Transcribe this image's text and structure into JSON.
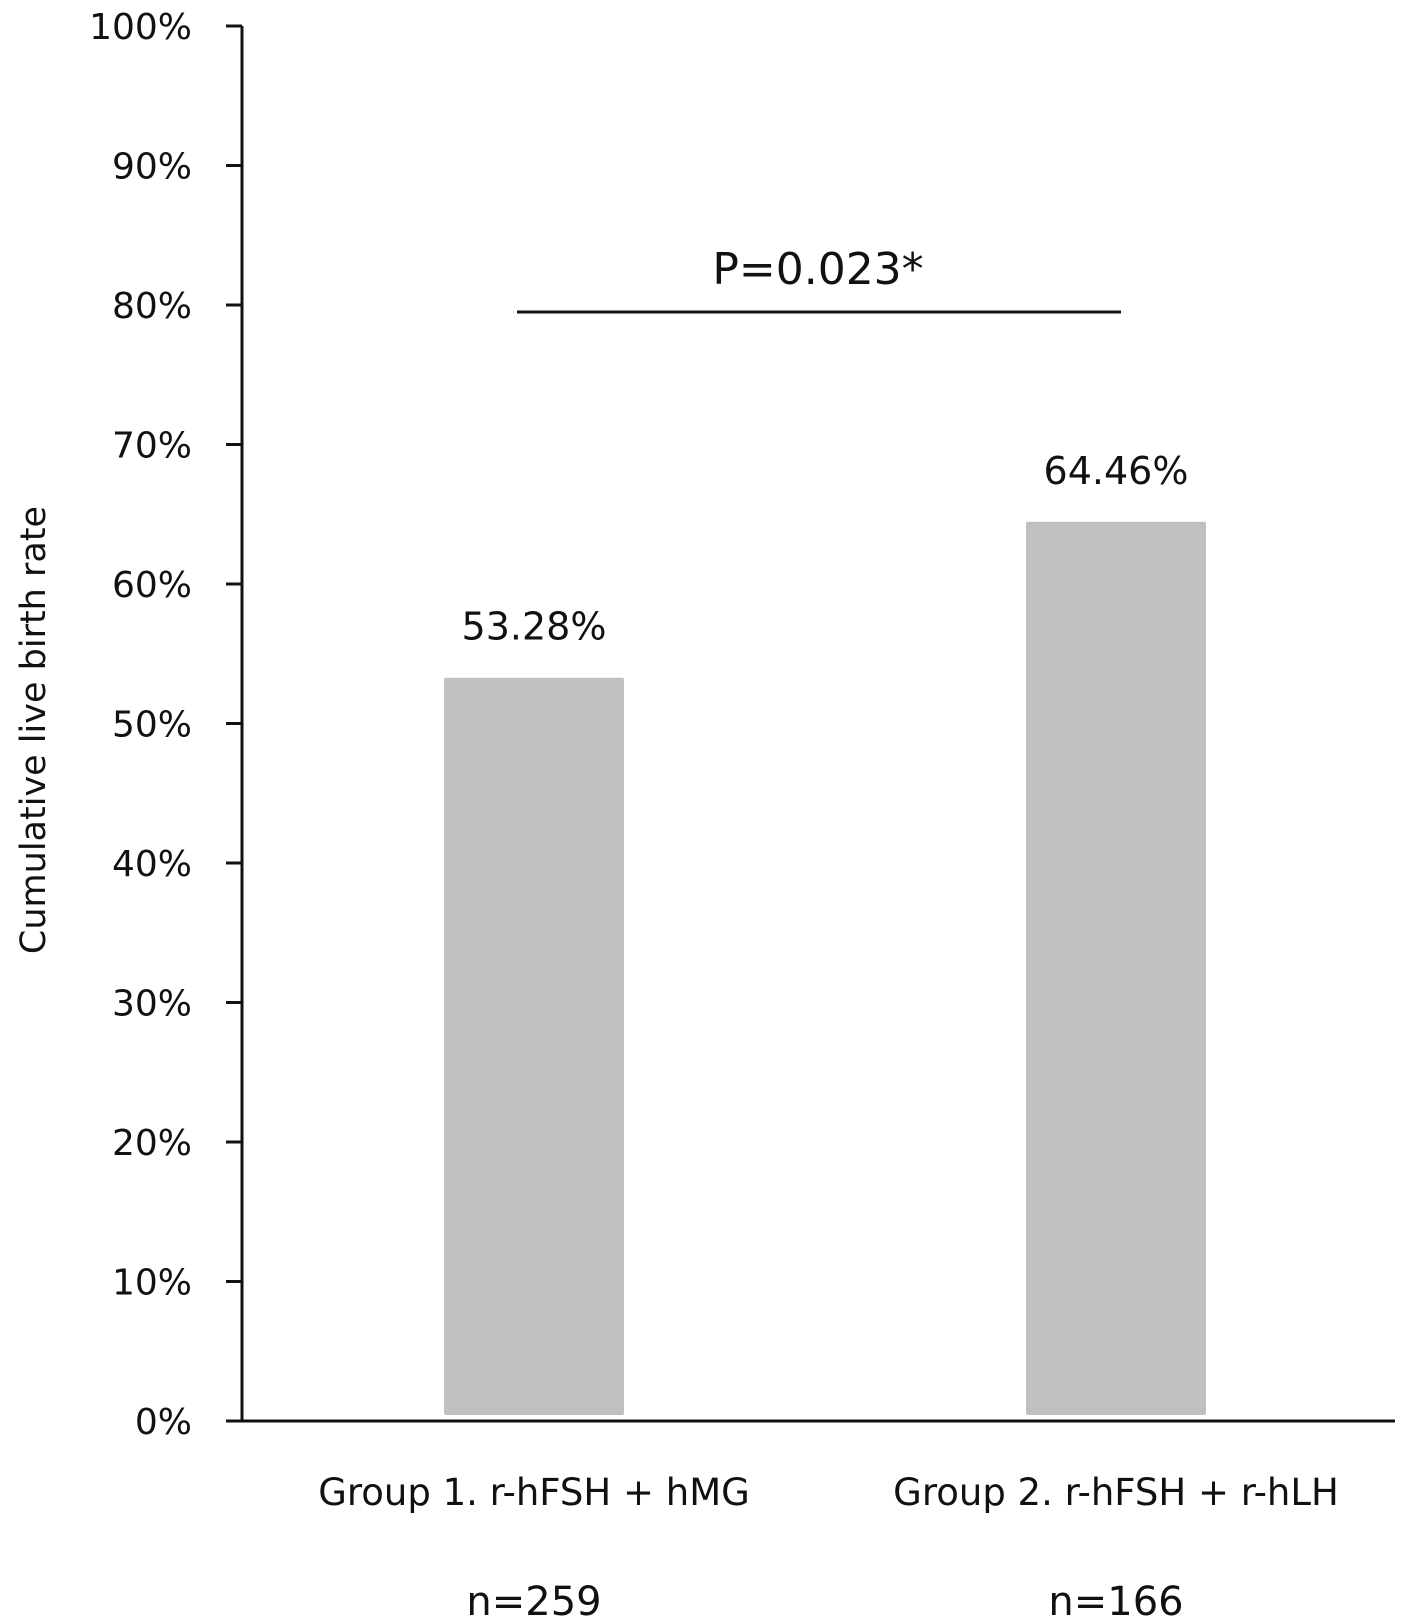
{
  "chart_data": {
    "type": "bar",
    "categories": [
      "Group 1. r-hFSH + hMG",
      "Group 2. r-hFSH + r-hLH"
    ],
    "sample_sizes": [
      "n=259",
      "n=166"
    ],
    "values": [
      53.28,
      64.46
    ],
    "data_labels": [
      "53.28%",
      "64.46%"
    ],
    "title": "",
    "xlabel": "",
    "ylabel": "Cumulative  live birth rate",
    "ylim": [
      0,
      100
    ],
    "yticks": [
      0,
      10,
      20,
      30,
      40,
      50,
      60,
      70,
      80,
      90,
      100
    ],
    "ytick_labels": [
      "0%",
      "10%",
      "20%",
      "30%",
      "40%",
      "50%",
      "60%",
      "70%",
      "80%",
      "90%",
      "100%"
    ],
    "grid": false,
    "legend": "none",
    "bar_color": "#c0c0c0",
    "annotation": {
      "text": "P=0.023*",
      "between": [
        "Group 1. r-hFSH + hMG",
        "Group 2. r-hFSH + r-hLH"
      ],
      "y": 79.5
    }
  }
}
